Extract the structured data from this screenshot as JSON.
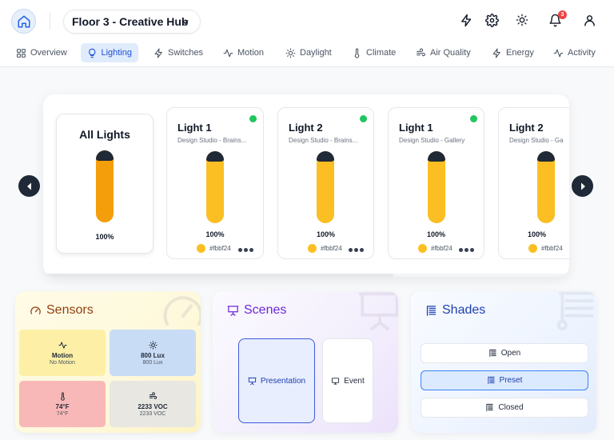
{
  "header": {
    "floor_label": "Floor 3 - Creative Hub",
    "notification_count": "3"
  },
  "tabs": [
    {
      "label": "Overview",
      "icon": "grid-icon"
    },
    {
      "label": "Lighting",
      "icon": "lightbulb-icon",
      "active": true
    },
    {
      "label": "Switches",
      "icon": "bolt-icon"
    },
    {
      "label": "Motion",
      "icon": "pulse-icon"
    },
    {
      "label": "Daylight",
      "icon": "sun-icon"
    },
    {
      "label": "Climate",
      "icon": "thermometer-icon"
    },
    {
      "label": "Air Quality",
      "icon": "wind-icon"
    },
    {
      "label": "Energy",
      "icon": "bolt-icon"
    },
    {
      "label": "Activity",
      "icon": "pulse-icon"
    }
  ],
  "lighting": {
    "all_lights": {
      "title": "All Lights",
      "brightness": 100,
      "brightness_label": "100%",
      "color": "#f59e0b"
    },
    "lights": [
      {
        "name": "Light 1",
        "location": "Design Studio - Brains...",
        "brightness": 100,
        "brightness_label": "100%",
        "color": "#fbbf24",
        "color_label": "#fbbf24",
        "online": true
      },
      {
        "name": "Light 2",
        "location": "Design Studio - Brains...",
        "brightness": 100,
        "brightness_label": "100%",
        "color": "#fbbf24",
        "color_label": "#fbbf24",
        "online": true
      },
      {
        "name": "Light 1",
        "location": "Design Studio - Gallery",
        "brightness": 100,
        "brightness_label": "100%",
        "color": "#fbbf24",
        "color_label": "#fbbf24",
        "online": true
      },
      {
        "name": "Light 2",
        "location": "Design Studio - Ga",
        "brightness": 100,
        "brightness_label": "100%",
        "color": "#fbbf24",
        "color_label": "#fbbf24",
        "online": false
      }
    ]
  },
  "sensors": {
    "title": "Sensors",
    "tiles": [
      {
        "label": "Motion",
        "sub": "No Motion",
        "icon": "pulse-icon",
        "bg": "#fdf0a6"
      },
      {
        "label": "800 Lux",
        "sub": "800 Lux",
        "icon": "sun-icon",
        "bg": "#c9dcf5"
      },
      {
        "label": "74°F",
        "sub": "74°F",
        "icon": "thermometer-icon",
        "bg": "#f9b8b8"
      },
      {
        "label": "2233 VOC",
        "sub": "2233 VOC",
        "icon": "wind-icon",
        "bg": "#e8e7e2"
      }
    ]
  },
  "scenes": {
    "title": "Scenes",
    "items": [
      {
        "label": "Presentation",
        "icon": "presentation-icon",
        "active": true
      },
      {
        "label": "Event",
        "icon": "monitor-icon",
        "active": false
      }
    ]
  },
  "shades": {
    "title": "Shades",
    "items": [
      {
        "label": "Open",
        "active": false
      },
      {
        "label": "Preset",
        "active": true
      },
      {
        "label": "Closed",
        "active": false
      }
    ]
  }
}
